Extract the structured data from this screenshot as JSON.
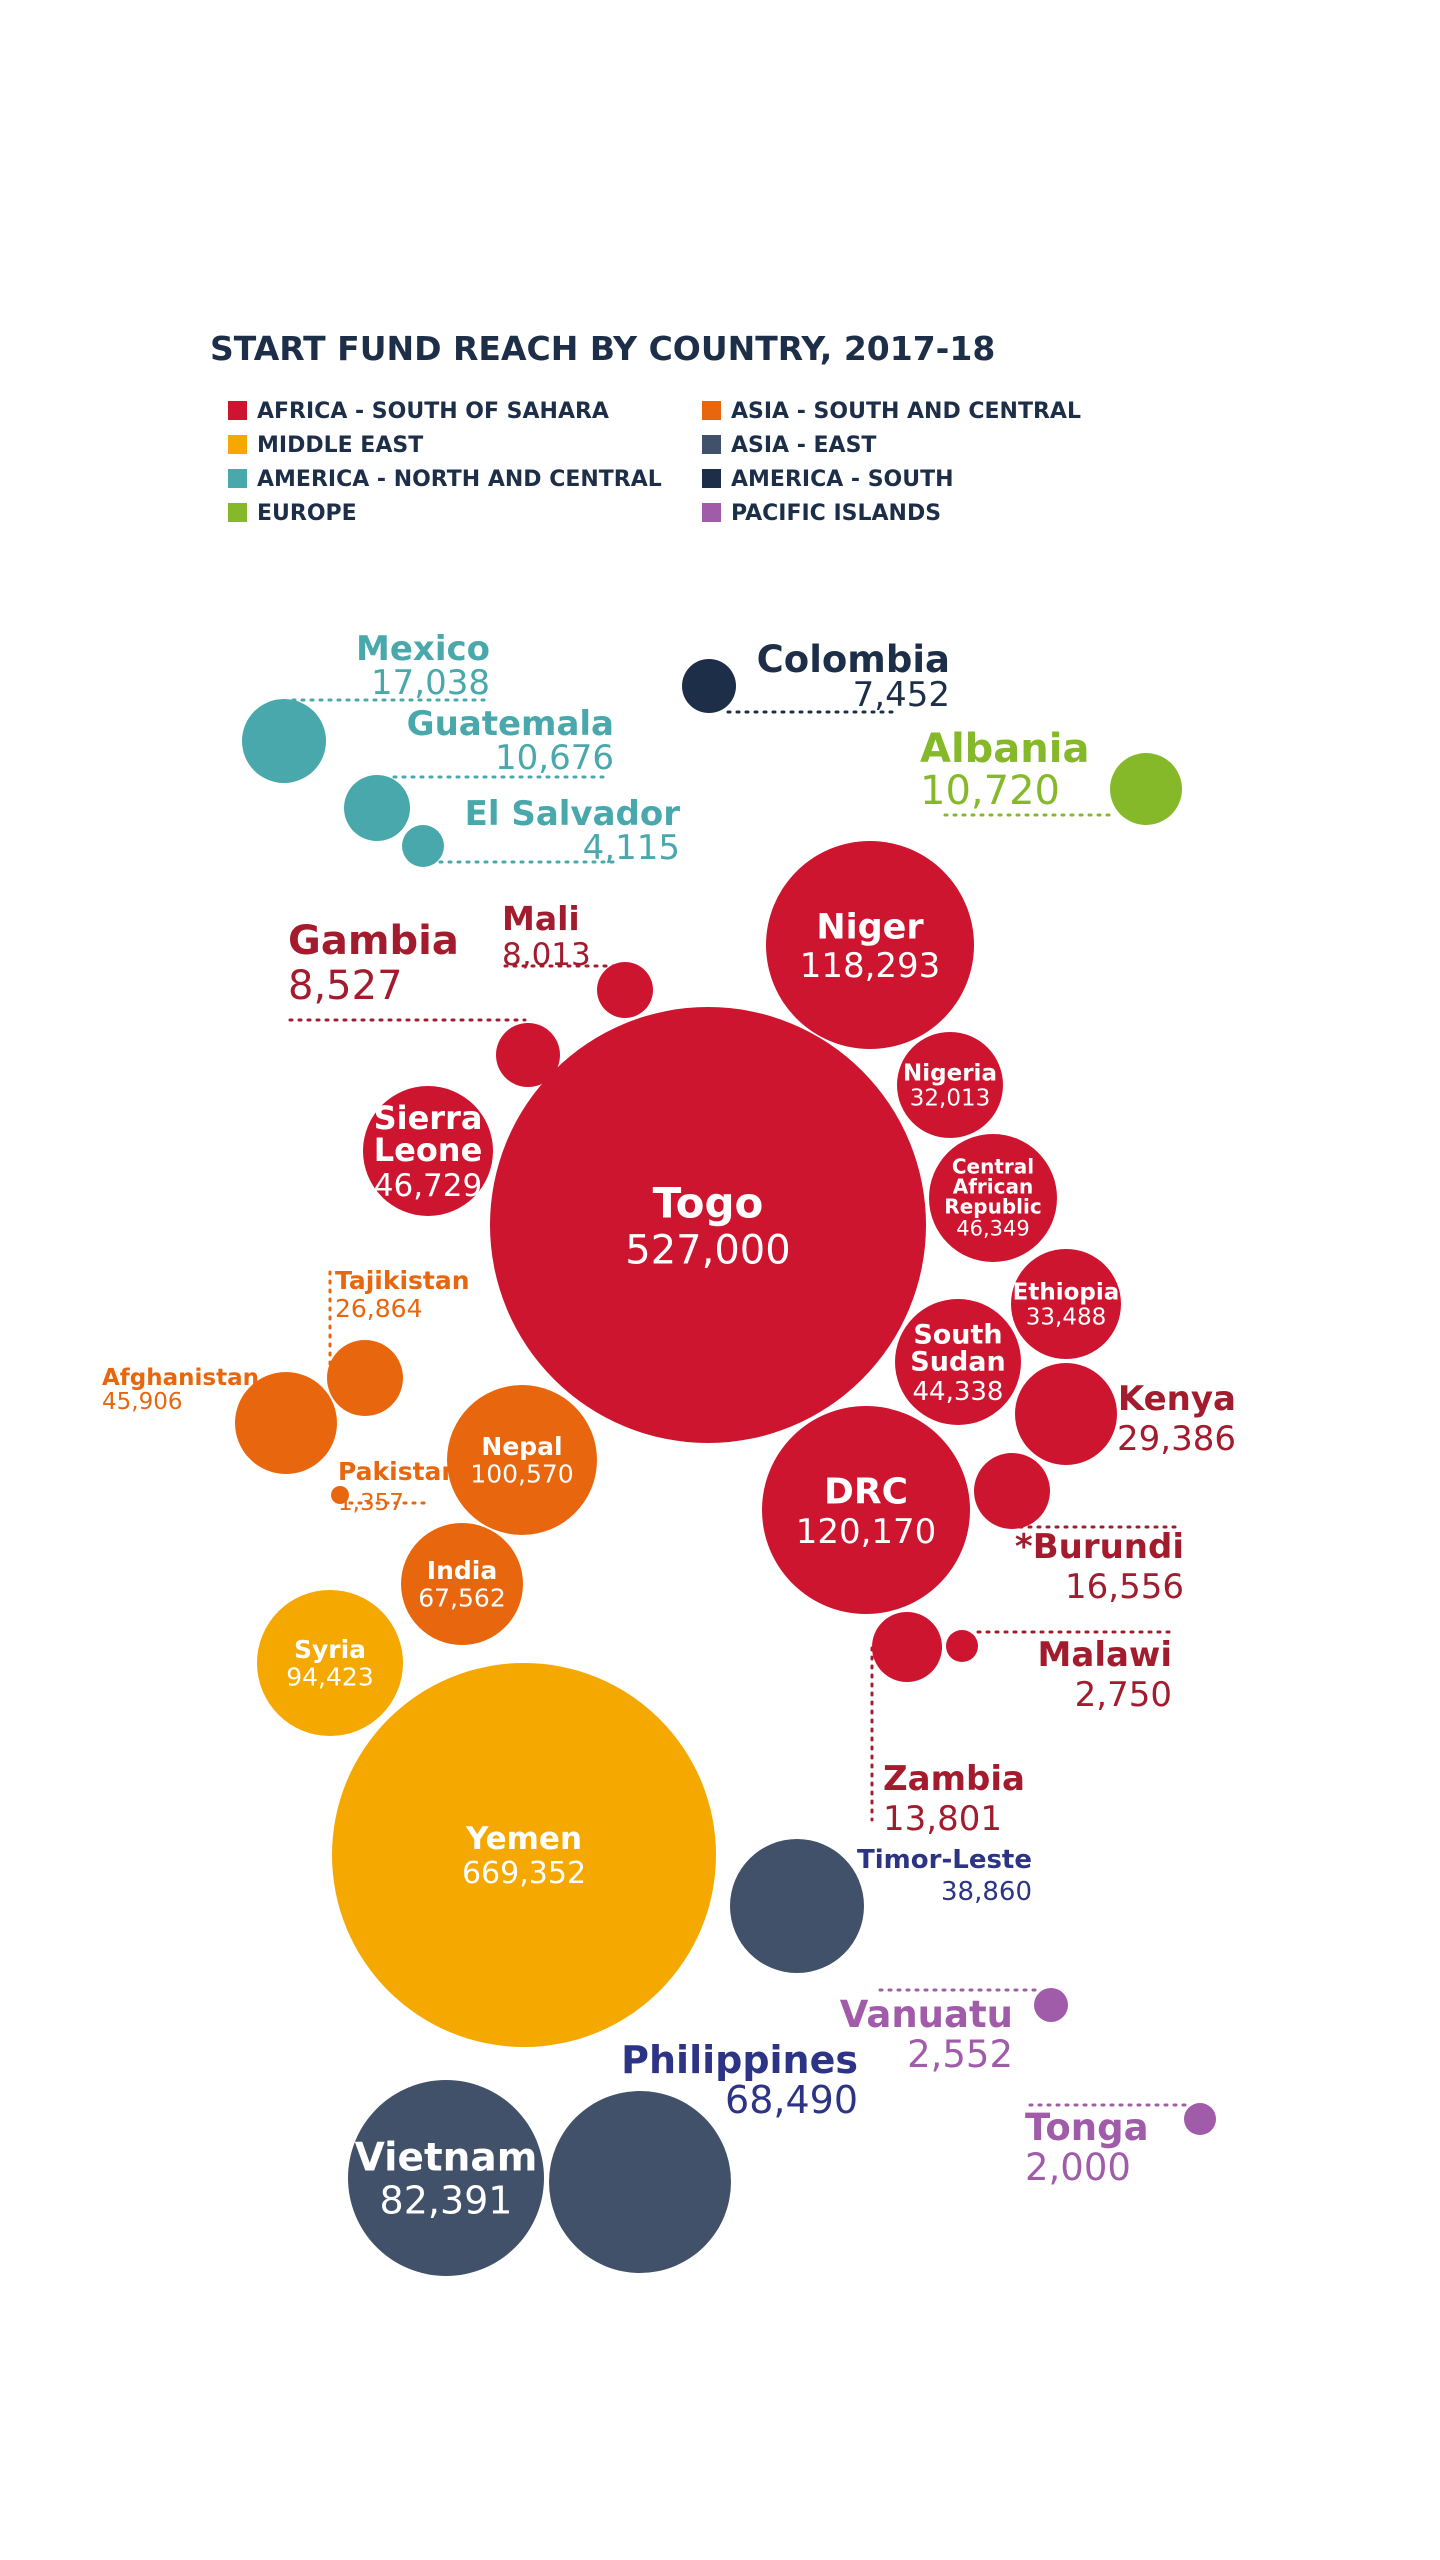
{
  "chart_data": {
    "type": "bubble",
    "title": "START FUND REACH BY COUNTRY, 2017-18",
    "colors": {
      "africa": "#cd1530",
      "africa_text": "#a21c2d",
      "middle_east": "#f5a800",
      "america_nc": "#48a8ab",
      "europe": "#86b929",
      "asia_sc": "#e8670e",
      "asia_east": "#41516a",
      "asia_east_text": "#2d3485",
      "america_south": "#1d2f48",
      "pacific": "#a05ca8",
      "title": "#1d2f48"
    },
    "legend": [
      {
        "label": "AFRICA - SOUTH OF SAHARA",
        "color": "#cd1530"
      },
      {
        "label": "MIDDLE EAST",
        "color": "#f5a800"
      },
      {
        "label": "AMERICA - NORTH AND CENTRAL",
        "color": "#48a8ab"
      },
      {
        "label": "EUROPE",
        "color": "#86b929"
      },
      {
        "label": "ASIA - SOUTH AND CENTRAL",
        "color": "#e8670e"
      },
      {
        "label": "ASIA - EAST",
        "color": "#41516a"
      },
      {
        "label": "AMERICA - SOUTH",
        "color": "#1d2f48"
      },
      {
        "label": "PACIFIC ISLANDS",
        "color": "#a05ca8"
      }
    ],
    "countries": [
      {
        "name": "Togo",
        "value": 527000,
        "display": "527,000",
        "region": "AFRICA - SOUTH OF SAHARA"
      },
      {
        "name": "Yemen",
        "value": 669352,
        "display": "669,352",
        "region": "MIDDLE EAST"
      },
      {
        "name": "DRC",
        "value": 120170,
        "display": "120,170",
        "region": "AFRICA - SOUTH OF SAHARA"
      },
      {
        "name": "Niger",
        "value": 118293,
        "display": "118,293",
        "region": "AFRICA - SOUTH OF SAHARA"
      },
      {
        "name": "Nepal",
        "value": 100570,
        "display": "100,570",
        "region": "ASIA - SOUTH AND CENTRAL"
      },
      {
        "name": "Syria",
        "value": 94423,
        "display": "94,423",
        "region": "MIDDLE EAST"
      },
      {
        "name": "Vietnam",
        "value": 82391,
        "display": "82,391",
        "region": "ASIA - EAST"
      },
      {
        "name": "Philippines",
        "value": 68490,
        "display": "68,490",
        "region": "ASIA - EAST"
      },
      {
        "name": "India",
        "value": 67562,
        "display": "67,562",
        "region": "ASIA - SOUTH AND CENTRAL"
      },
      {
        "name": "Sierra Leone",
        "value": 46729,
        "display": "46,729",
        "region": "AFRICA - SOUTH OF SAHARA"
      },
      {
        "name": "Central African Republic",
        "value": 46349,
        "display": "46,349",
        "region": "AFRICA - SOUTH OF SAHARA"
      },
      {
        "name": "Afghanistan",
        "value": 45906,
        "display": "45,906",
        "region": "ASIA - SOUTH AND CENTRAL"
      },
      {
        "name": "South Sudan",
        "value": 44338,
        "display": "44,338",
        "region": "AFRICA - SOUTH OF SAHARA"
      },
      {
        "name": "Timor-Leste",
        "value": 38860,
        "display": "38,860",
        "region": "ASIA - EAST"
      },
      {
        "name": "Ethiopia",
        "value": 33488,
        "display": "33,488",
        "region": "AFRICA - SOUTH OF SAHARA"
      },
      {
        "name": "Nigeria",
        "value": 32013,
        "display": "32,013",
        "region": "AFRICA - SOUTH OF SAHARA"
      },
      {
        "name": "Kenya",
        "value": 29386,
        "display": "29,386",
        "region": "AFRICA - SOUTH OF SAHARA"
      },
      {
        "name": "Tajikistan",
        "value": 26864,
        "display": "26,864",
        "region": "ASIA - SOUTH AND CENTRAL"
      },
      {
        "name": "Mexico",
        "value": 17038,
        "display": "17,038",
        "region": "AMERICA - NORTH AND CENTRAL"
      },
      {
        "name": "*Burundi",
        "value": 16556,
        "display": "16,556",
        "region": "AFRICA - SOUTH OF SAHARA"
      },
      {
        "name": "Zambia",
        "value": 13801,
        "display": "13,801",
        "region": "AFRICA - SOUTH OF SAHARA"
      },
      {
        "name": "Albania",
        "value": 10720,
        "display": "10,720",
        "region": "EUROPE"
      },
      {
        "name": "Guatemala",
        "value": 10676,
        "display": "10,676",
        "region": "AMERICA - NORTH AND CENTRAL"
      },
      {
        "name": "Gambia",
        "value": 8527,
        "display": "8,527",
        "region": "AFRICA - SOUTH OF SAHARA"
      },
      {
        "name": "Mali",
        "value": 8013,
        "display": "8,013",
        "region": "AFRICA - SOUTH OF SAHARA"
      },
      {
        "name": "Colombia",
        "value": 7452,
        "display": "7,452",
        "region": "AMERICA - SOUTH"
      },
      {
        "name": "El Salvador",
        "value": 4115,
        "display": "4,115",
        "region": "AMERICA - NORTH AND CENTRAL"
      },
      {
        "name": "Malawi",
        "value": 2750,
        "display": "2,750",
        "region": "AFRICA - SOUTH OF SAHARA"
      },
      {
        "name": "Vanuatu",
        "value": 2552,
        "display": "2,552",
        "region": "PACIFIC ISLANDS"
      },
      {
        "name": "Tonga",
        "value": 2000,
        "display": "2,000",
        "region": "PACIFIC ISLANDS"
      },
      {
        "name": "Pakistan",
        "value": 1357,
        "display": "1,357",
        "region": "ASIA - SOUTH AND CENTRAL"
      }
    ]
  }
}
